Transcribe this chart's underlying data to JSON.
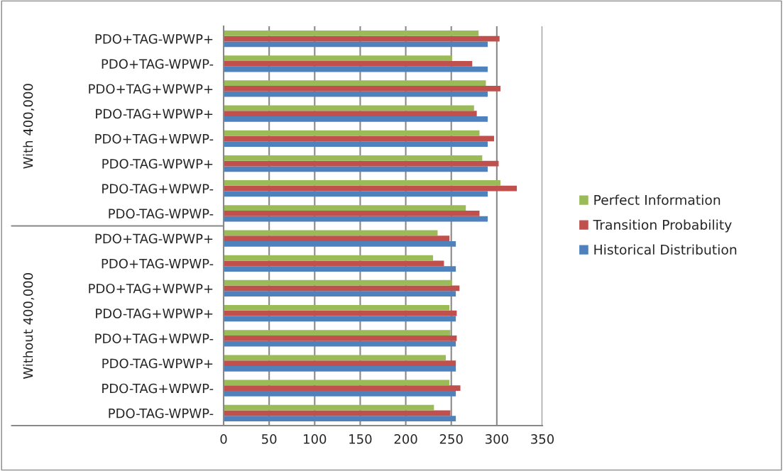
{
  "chart_data": {
    "type": "bar",
    "orientation": "horizontal",
    "categories": [
      "PDO+TAG-WPWP+",
      "PDO+TAG-WPWP-",
      "PDO+TAG+WPWP+",
      "PDO-TAG+WPWP+",
      "PDO+TAG+WPWP-",
      "PDO-TAG-WPWP+",
      "PDO-TAG+WPWP-",
      "PDO-TAG-WPWP-",
      "PDO+TAG-WPWP+",
      "PDO+TAG-WPWP-",
      "PDO+TAG+WPWP+",
      "PDO-TAG+WPWP+",
      "PDO+TAG+WPWP-",
      "PDO-TAG-WPWP+",
      "PDO-TAG+WPWP-",
      "PDO-TAG-WPWP-"
    ],
    "series": [
      {
        "name": "Historical Distribution",
        "color": "#4f81bd",
        "values": [
          290,
          290,
          290,
          290,
          290,
          290,
          290,
          290,
          255,
          255,
          255,
          255,
          255,
          255,
          255,
          255
        ]
      },
      {
        "name": "Transition Probability",
        "color": "#c0504d",
        "values": [
          303,
          273,
          304,
          278,
          297,
          302,
          322,
          281,
          248,
          242,
          259,
          256,
          256,
          255,
          260,
          249
        ]
      },
      {
        "name": "Perfect Information",
        "color": "#9bbb59",
        "values": [
          280,
          251,
          288,
          275,
          281,
          284,
          304,
          266,
          235,
          230,
          251,
          248,
          249,
          244,
          248,
          231
        ]
      }
    ],
    "annotations": [
      "With 400,000",
      "Without 400,000"
    ],
    "xlim": [
      0,
      350
    ],
    "xticks": [
      0,
      50,
      100,
      150,
      200,
      250,
      300,
      350
    ],
    "grid": "x",
    "legend": "right"
  }
}
